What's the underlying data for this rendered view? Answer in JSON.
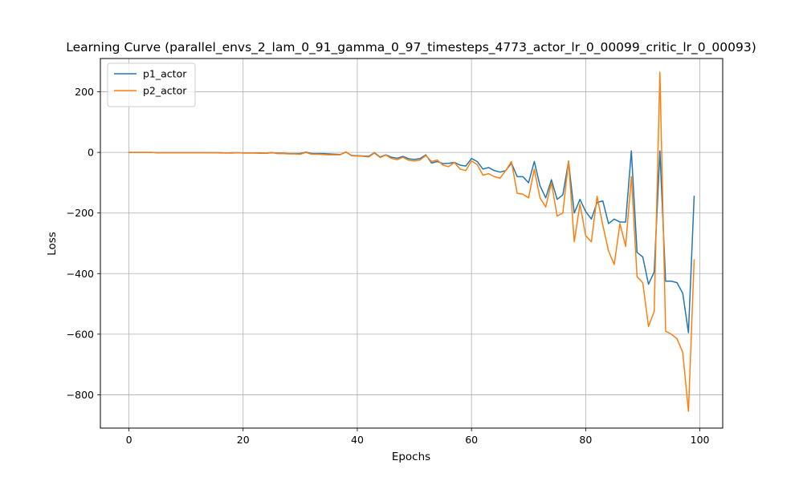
{
  "chart_data": {
    "type": "line",
    "title": "Learning Curve (parallel_envs_2_lam_0_91_gamma_0_97_timesteps_4773_actor_lr_0_00099_critic_lr_0_00093)",
    "xlabel": "Epochs",
    "ylabel": "Loss",
    "xlim": [
      -5,
      104
    ],
    "ylim": [
      -910,
      310
    ],
    "xticks": [
      0,
      20,
      40,
      60,
      80,
      100
    ],
    "yticks": [
      200,
      0,
      -200,
      -400,
      -600,
      -800
    ],
    "ytick_labels": [
      "200",
      "0",
      "−200",
      "−400",
      "−600",
      "−800"
    ],
    "grid": true,
    "legend_position": "top-left",
    "series": [
      {
        "name": "p1_actor",
        "color": "#1f77b4",
        "values": [
          0,
          0,
          0,
          0,
          0,
          -1,
          -1,
          -1,
          -1,
          -1,
          -1,
          -1,
          -1,
          -1,
          -1,
          -1,
          -1,
          -2,
          -2,
          -1,
          -2,
          -2,
          -2,
          -2,
          -3,
          -1,
          -3,
          -3,
          -4,
          -4,
          -4,
          1,
          -4,
          -4,
          -4,
          -5,
          -6,
          -7,
          1,
          -10,
          -11,
          -12,
          -13,
          -1,
          -15,
          -8,
          -16,
          -19,
          -13,
          -21,
          -23,
          -20,
          -8,
          -35,
          -30,
          -37,
          -36,
          -33,
          -42,
          -45,
          -20,
          -30,
          -55,
          -50,
          -60,
          -65,
          -60,
          -35,
          -80,
          -80,
          -100,
          -30,
          -110,
          -150,
          -90,
          -155,
          -140,
          -30,
          -200,
          -155,
          -195,
          -220,
          -165,
          -160,
          -235,
          -220,
          -230,
          -230,
          5,
          -330,
          -345,
          -435,
          -395,
          5,
          -425,
          -425,
          -430,
          -465,
          -595,
          -145
        ]
      },
      {
        "name": "p2_actor",
        "color": "#ff7f0e",
        "values": [
          0,
          0,
          0,
          0,
          0,
          -1,
          -1,
          -1,
          -1,
          -1,
          -1,
          -1,
          -1,
          -1,
          -1,
          -1,
          -2,
          -2,
          -1,
          -1,
          -2,
          -2,
          -2,
          -3,
          -3,
          0,
          -4,
          -4,
          -5,
          -5,
          -6,
          0,
          -6,
          -6,
          -7,
          -8,
          -8,
          -8,
          2,
          -11,
          -12,
          -13,
          -15,
          -2,
          -17,
          -9,
          -20,
          -24,
          -16,
          -26,
          -28,
          -25,
          -10,
          -30,
          -25,
          -42,
          -47,
          -33,
          -55,
          -60,
          -28,
          -40,
          -75,
          -70,
          -80,
          -85,
          -60,
          -30,
          -135,
          -138,
          -150,
          -55,
          -150,
          -180,
          -100,
          -210,
          -200,
          -28,
          -295,
          -170,
          -275,
          -295,
          -145,
          -240,
          -325,
          -370,
          -235,
          -310,
          -80,
          -410,
          -430,
          -575,
          -525,
          265,
          -590,
          -600,
          -615,
          -660,
          -855,
          -355
        ]
      }
    ]
  }
}
